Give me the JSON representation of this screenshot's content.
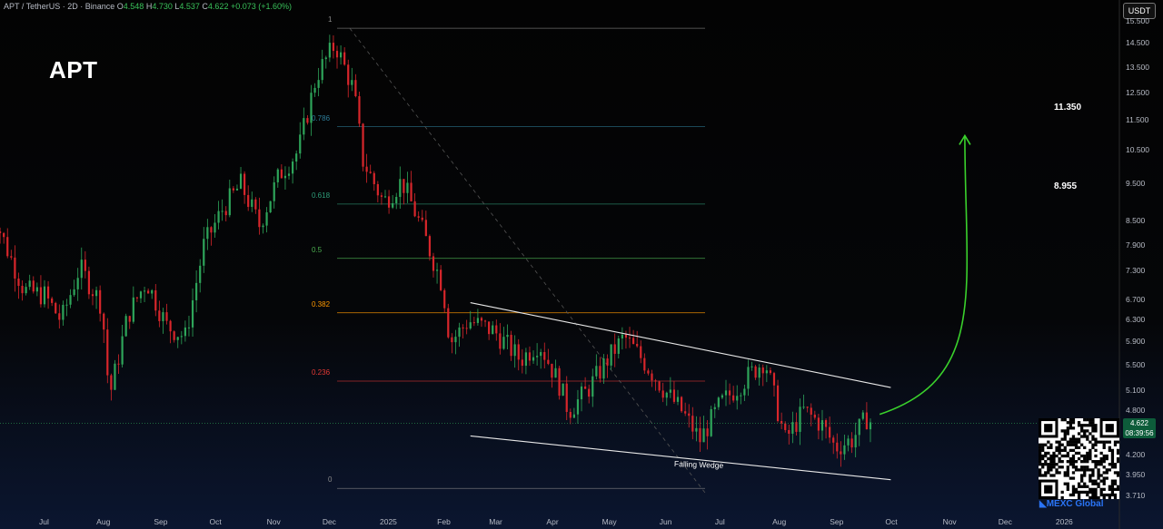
{
  "header": {
    "pair": "APT / TetherUS · 2D · Binance",
    "open_label": "O",
    "open": "4.548",
    "high_label": "H",
    "high": "4.730",
    "low_label": "L",
    "low": "4.537",
    "close_label": "C",
    "close": "4.622",
    "change": "+0.073 (+1.60%)"
  },
  "symbol": "APT",
  "currency": "USDT",
  "current_price": {
    "value": "4.622",
    "countdown": "08:39:56"
  },
  "brand": "MEXC Global",
  "chart_data": {
    "type": "candlestick",
    "title": "",
    "y_scale": "log",
    "ylim": [
      3.6,
      15.6
    ],
    "y_ticks": [
      "15.500",
      "14.500",
      "13.500",
      "12.500",
      "11.500",
      "10.500",
      "9.500",
      "8.500",
      "7.900",
      "7.300",
      "6.700",
      "6.300",
      "5.900",
      "5.500",
      "5.100",
      "4.800",
      "4.200",
      "3.950",
      "3.710"
    ],
    "x_ticks": [
      "Jul",
      "Aug",
      "Sep",
      "Oct",
      "Nov",
      "Dec",
      "2025",
      "Feb",
      "Mar",
      "Apr",
      "May",
      "Jun",
      "Jul",
      "Aug",
      "Sep",
      "Oct",
      "Nov",
      "Dec",
      "2026"
    ],
    "fib_levels": [
      {
        "label": "1",
        "price": 15.2,
        "color": "#8a8a8a"
      },
      {
        "label": "0.786",
        "price": 11.3,
        "color": "#2e7d9a"
      },
      {
        "label": "0.618",
        "price": 8.95,
        "color": "#2e9e7a"
      },
      {
        "label": "0.5",
        "price": 7.6,
        "color": "#4caf50"
      },
      {
        "label": "0.382",
        "price": 6.45,
        "color": "#ff9800"
      },
      {
        "label": "0.236",
        "price": 5.25,
        "color": "#e53935"
      },
      {
        "label": "0",
        "price": 3.8,
        "color": "#8a8a8a"
      }
    ],
    "targets": [
      "11.350",
      "8.955"
    ],
    "pattern_label": "Falling Wedge",
    "wedge_upper": [
      [
        "2025-02-16",
        6.65
      ],
      [
        "2025-10-01",
        5.15
      ]
    ],
    "wedge_lower": [
      [
        "2025-02-16",
        4.45
      ],
      [
        "2025-10-01",
        3.9
      ]
    ],
    "projection": {
      "from": [
        "2025-09-25",
        4.75
      ],
      "to": [
        "2025-11-10",
        11.0
      ],
      "color": "#3ad12c"
    },
    "path": [
      [
        "2024-06-01",
        9.0
      ],
      [
        "2024-06-10",
        7.9
      ],
      [
        "2024-06-20",
        6.9
      ],
      [
        "2024-07-01",
        6.8
      ],
      [
        "2024-07-10",
        6.3
      ],
      [
        "2024-07-20",
        7.4
      ],
      [
        "2024-08-01",
        6.6
      ],
      [
        "2024-08-05",
        5.0
      ],
      [
        "2024-08-15",
        6.4
      ],
      [
        "2024-08-25",
        7.1
      ],
      [
        "2024-09-05",
        6.2
      ],
      [
        "2024-09-15",
        6.0
      ],
      [
        "2024-09-25",
        7.9
      ],
      [
        "2024-10-05",
        8.8
      ],
      [
        "2024-10-15",
        9.5
      ],
      [
        "2024-10-25",
        8.4
      ],
      [
        "2024-11-05",
        9.8
      ],
      [
        "2024-11-15",
        10.5
      ],
      [
        "2024-11-25",
        13.2
      ],
      [
        "2024-12-05",
        14.5
      ],
      [
        "2024-12-15",
        12.6
      ],
      [
        "2024-12-20",
        10.2
      ],
      [
        "2024-12-31",
        9.0
      ],
      [
        "2025-01-10",
        9.6
      ],
      [
        "2025-01-20",
        8.4
      ],
      [
        "2025-02-01",
        7.0
      ],
      [
        "2025-02-05",
        5.9
      ],
      [
        "2025-02-15",
        6.3
      ],
      [
        "2025-03-01",
        6.1
      ],
      [
        "2025-03-15",
        5.6
      ],
      [
        "2025-03-25",
        5.9
      ],
      [
        "2025-04-05",
        5.2
      ],
      [
        "2025-04-10",
        4.8
      ],
      [
        "2025-04-20",
        5.1
      ],
      [
        "2025-05-01",
        5.6
      ],
      [
        "2025-05-10",
        6.0
      ],
      [
        "2025-05-20",
        5.6
      ],
      [
        "2025-06-01",
        5.1
      ],
      [
        "2025-06-10",
        4.8
      ],
      [
        "2025-06-20",
        4.4
      ],
      [
        "2025-07-01",
        4.9
      ],
      [
        "2025-07-15",
        5.3
      ],
      [
        "2025-07-25",
        5.6
      ],
      [
        "2025-08-01",
        4.8
      ],
      [
        "2025-08-05",
        4.4
      ],
      [
        "2025-08-15",
        4.8
      ],
      [
        "2025-08-25",
        4.6
      ],
      [
        "2025-09-01",
        4.3
      ],
      [
        "2025-09-10",
        4.4
      ],
      [
        "2025-09-18",
        4.7
      ],
      [
        "2025-09-21",
        4.62
      ]
    ]
  }
}
